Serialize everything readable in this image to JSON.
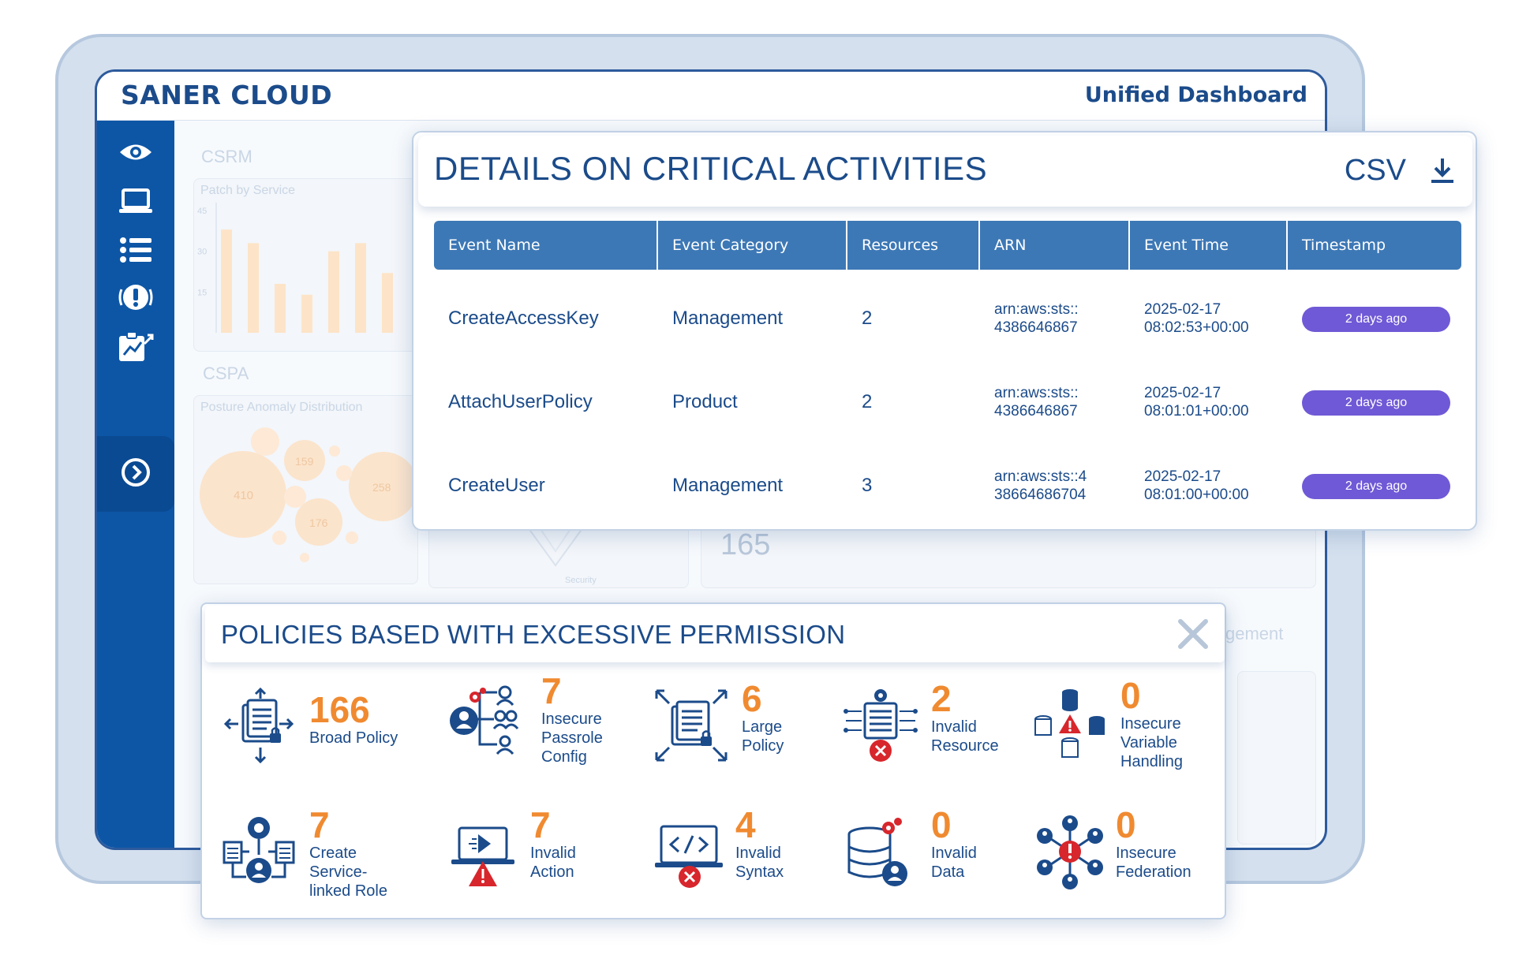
{
  "app": {
    "brand": "SANER CLOUD",
    "header_title": "Unified Dashboard"
  },
  "sidebar": {
    "items": [
      {
        "icon": "eye-icon"
      },
      {
        "icon": "laptop-icon"
      },
      {
        "icon": "list-icon"
      },
      {
        "icon": "alert-icon"
      },
      {
        "icon": "report-chart-icon"
      },
      {
        "icon": "chevron-right-circle-icon"
      }
    ]
  },
  "background": {
    "csrm_label": "CSRM",
    "patch_label": "Patch by Service",
    "y_ticks": [
      "45",
      "30",
      "15"
    ],
    "bar_values": [
      38,
      33,
      18,
      14,
      30,
      33,
      22
    ],
    "cspa_label": "CSPA",
    "posture_label": "Posture Anomaly Distribution",
    "bubbles": [
      "410",
      "159",
      "176",
      "258"
    ],
    "stat_165": "165",
    "management_fragment": "gement",
    "security_fragment": "Security"
  },
  "critical": {
    "title": "DETAILS ON CRITICAL ACTIVITIES",
    "csv_label": "CSV",
    "columns": [
      "Event Name",
      "Event Category",
      "Resources",
      "ARN",
      "Event Time",
      "Timestamp"
    ],
    "rows": [
      {
        "event_name": "CreateAccessKey",
        "category": "Management",
        "resources": "2",
        "arn_1": "arn:aws:sts::",
        "arn_2": "4386646867",
        "time_1": "2025-02-17",
        "time_2": "08:02:53+00:00",
        "timestamp": "2 days ago"
      },
      {
        "event_name": "AttachUserPolicy",
        "category": "Product",
        "resources": "2",
        "arn_1": "arn:aws:sts::",
        "arn_2": "4386646867",
        "time_1": "2025-02-17",
        "time_2": "08:01:01+00:00",
        "timestamp": "2 days ago"
      },
      {
        "event_name": "CreateUser",
        "category": "Management",
        "resources": "3",
        "arn_1": "arn:aws:sts::4",
        "arn_2": "38664686704",
        "time_1": "2025-02-17",
        "time_2": "08:01:00+00:00",
        "timestamp": "2 days ago"
      }
    ]
  },
  "policies": {
    "title": "POLICIES BASED WITH EXCESSIVE PERMISSION",
    "metrics": [
      {
        "value": "166",
        "label": "Broad Policy",
        "icon": "broad-policy-icon"
      },
      {
        "value": "7",
        "label": "Insecure\nPassrole\nConfig",
        "icon": "passrole-icon"
      },
      {
        "value": "6",
        "label": "Large\nPolicy",
        "icon": "large-policy-icon"
      },
      {
        "value": "2",
        "label": "Invalid\nResource",
        "icon": "invalid-resource-icon"
      },
      {
        "value": "0",
        "label": "Insecure\nVariable\nHandling",
        "icon": "variable-handling-icon"
      },
      {
        "value": "7",
        "label": "Create\nService-\nlinked Role",
        "icon": "service-role-icon"
      },
      {
        "value": "7",
        "label": "Invalid\nAction",
        "icon": "invalid-action-icon"
      },
      {
        "value": "4",
        "label": "Invalid\nSyntax",
        "icon": "invalid-syntax-icon"
      },
      {
        "value": "0",
        "label": "Invalid\nData",
        "icon": "invalid-data-icon"
      },
      {
        "value": "0",
        "label": "Insecure\nFederation",
        "icon": "federation-icon"
      }
    ]
  },
  "colors": {
    "primary": "#1b4b8a",
    "sidebar": "#0d56a6",
    "table_header": "#3d78b6",
    "accent_orange": "#f08a30",
    "badge_purple": "#7059d6",
    "alert_red": "#d7262c"
  }
}
